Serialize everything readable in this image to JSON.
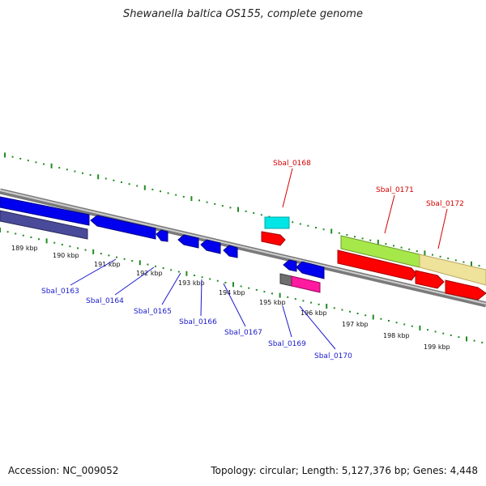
{
  "title": "Shewanella baltica OS155, complete genome",
  "footer": {
    "accession": "Accession: NC_009052",
    "summary": "Topology: circular; Length: 5,127,376 bp; Genes: 4,448"
  },
  "scale_labels": [
    "189 kbp",
    "190 kbp",
    "191 kbp",
    "192 kbp",
    "193 kbp",
    "194 kbp",
    "195 kbp",
    "196 kbp",
    "197 kbp",
    "198 kbp",
    "199 kbp"
  ],
  "genes_forward": [
    {
      "name": "Sbal_0168",
      "color": "#d40000"
    },
    {
      "name": "Sbal_0171",
      "color": "#d40000"
    },
    {
      "name": "Sbal_0172",
      "color": "#d40000"
    }
  ],
  "genes_reverse": [
    {
      "name": "Sbal_0163",
      "color": "#1a1acc"
    },
    {
      "name": "Sbal_0164",
      "color": "#1a1acc"
    },
    {
      "name": "Sbal_0165",
      "color": "#1a1acc"
    },
    {
      "name": "Sbal_0166",
      "color": "#1a1acc"
    },
    {
      "name": "Sbal_0167",
      "color": "#1a1acc"
    },
    {
      "name": "Sbal_0169",
      "color": "#1a1acc"
    },
    {
      "name": "Sbal_0170",
      "color": "#1a1acc"
    }
  ],
  "colors": {
    "forward_cds": "#ff0000",
    "reverse_cds": "#0000ee",
    "backbone": "#7a7a7a",
    "tick": "#228b22",
    "feature_cyan": "#00e5e5",
    "feature_green": "#a6e84a",
    "feature_khaki": "#efe29a",
    "feature_magenta": "#ff1aa0",
    "feature_navy": "#4a4a9a"
  }
}
